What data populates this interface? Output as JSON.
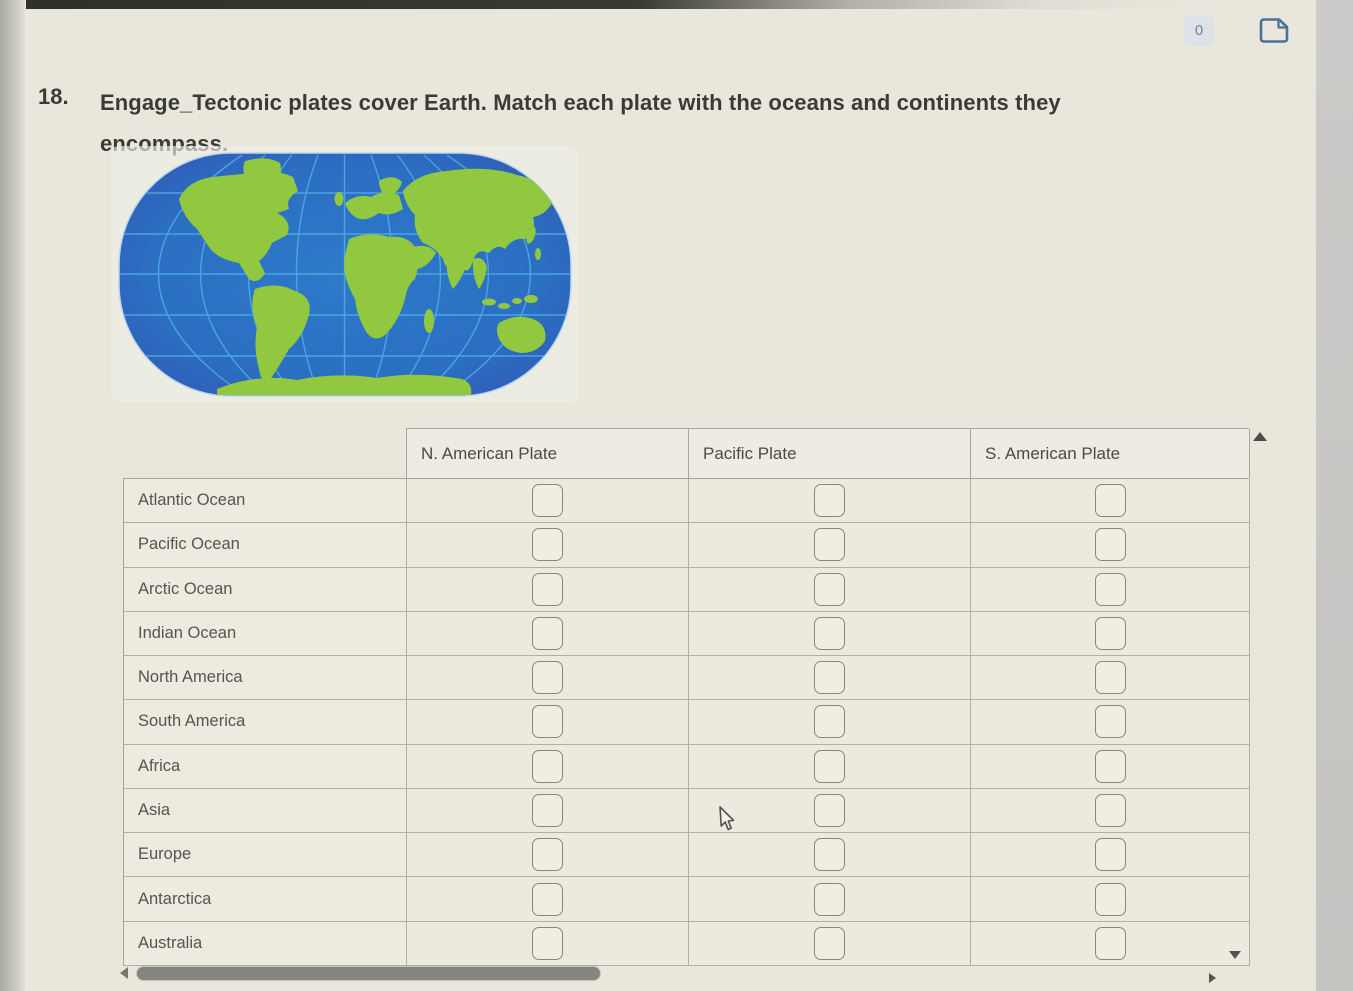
{
  "colors": {
    "page_bg": "#e9e6dc",
    "side_panel": "#c8c7c4",
    "table_border": "#a8a69c",
    "ink": "#3b3b36",
    "map_ocean": "#2d74c6",
    "map_ocean_deep": "#3553b2",
    "map_land": "#92c83f",
    "map_grid": "#57b7e8"
  },
  "toolbar": {
    "counter": "0",
    "icons": [
      "counter-badge",
      "document-icon"
    ]
  },
  "question": {
    "number": "18.",
    "line1": "Engage_Tectonic plates cover Earth. Match each plate with the oceans and continents they",
    "line2": "encompass.",
    "full_text": "Engage_Tectonic plates cover Earth. Match each plate with the oceans and continents they encompass."
  },
  "map": {
    "description": "World map, oval Robinson-style projection with latitude-longitude grid, green continents on blue ocean"
  },
  "table": {
    "columns": [
      "N. American Plate",
      "Pacific Plate",
      "S. American Plate"
    ],
    "rows": [
      {
        "label": "Atlantic Ocean",
        "checks": [
          false,
          false,
          false
        ]
      },
      {
        "label": "Pacific Ocean",
        "checks": [
          false,
          false,
          false
        ]
      },
      {
        "label": "Arctic Ocean",
        "checks": [
          false,
          false,
          false
        ]
      },
      {
        "label": "Indian Ocean",
        "checks": [
          false,
          false,
          false
        ]
      },
      {
        "label": "North America",
        "checks": [
          false,
          false,
          false
        ]
      },
      {
        "label": "South America",
        "checks": [
          false,
          false,
          false
        ]
      },
      {
        "label": "Africa",
        "checks": [
          false,
          false,
          false
        ]
      },
      {
        "label": "Asia",
        "checks": [
          false,
          false,
          false
        ]
      },
      {
        "label": "Europe",
        "checks": [
          false,
          false,
          false
        ]
      },
      {
        "label": "Antarctica",
        "checks": [
          false,
          false,
          false
        ]
      },
      {
        "label": "Australia",
        "checks": [
          false,
          false,
          false
        ]
      }
    ]
  },
  "scroll": {
    "vertical_icons": [
      "scroll-up-icon",
      "scroll-down-icon"
    ],
    "horizontal_icons": [
      "scroll-left-icon",
      "scroll-right-icon"
    ]
  }
}
